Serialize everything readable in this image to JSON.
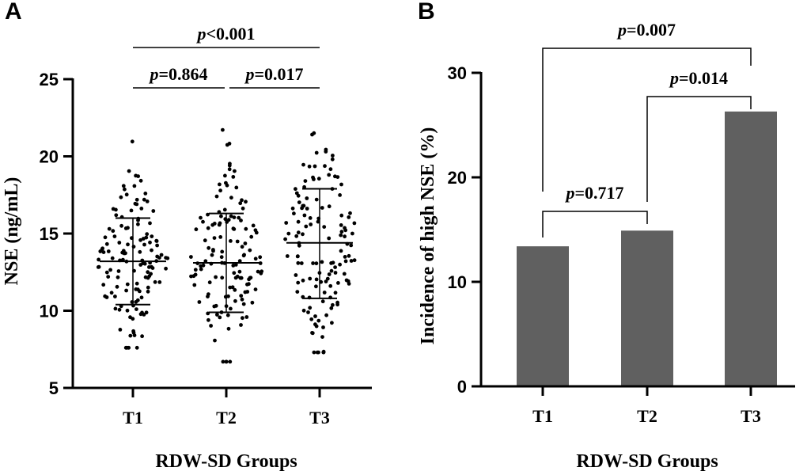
{
  "figure": {
    "panel_a_label": "A",
    "panel_b_label": "B",
    "colors": {
      "axis": "#000000",
      "bar": "#606060",
      "dot": "#000000"
    }
  },
  "chart_data": [
    {
      "type": "scatter",
      "panel": "A",
      "title": "",
      "xlabel": "RDW-SD Groups",
      "ylabel": "NSE (ng/mL)",
      "categories": [
        "T1",
        "T2",
        "T3"
      ],
      "ylim": [
        5,
        25
      ],
      "yticks": [
        5,
        10,
        15,
        20,
        25
      ],
      "grid": false,
      "summary": [
        {
          "group": "T1",
          "mean": 13.2,
          "sd_low": 10.4,
          "sd_high": 16.0
        },
        {
          "group": "T2",
          "mean": 13.1,
          "sd_low": 9.9,
          "sd_high": 16.3
        },
        {
          "group": "T3",
          "mean": 14.4,
          "sd_low": 10.8,
          "sd_high": 17.9
        }
      ],
      "comparisons": [
        {
          "from": "T1",
          "to": "T2",
          "p_label": "p",
          "p_value": "=0.864"
        },
        {
          "from": "T2",
          "to": "T3",
          "p_label": "p",
          "p_value": "=0.017"
        },
        {
          "from": "T1",
          "to": "T3",
          "p_label": "p",
          "p_value": "<0.001"
        }
      ]
    },
    {
      "type": "bar",
      "panel": "B",
      "title": "",
      "xlabel": "RDW-SD Groups",
      "ylabel": "Incidence of high NSE (%)",
      "categories": [
        "T1",
        "T2",
        "T3"
      ],
      "values": [
        13.4,
        14.9,
        26.3
      ],
      "ylim": [
        0,
        30
      ],
      "yticks": [
        0,
        10,
        20,
        30
      ],
      "grid": false,
      "comparisons": [
        {
          "from": "T1",
          "to": "T2",
          "p_label": "p",
          "p_value": "=0.717"
        },
        {
          "from": "T2",
          "to": "T3",
          "p_label": "p",
          "p_value": "=0.014"
        },
        {
          "from": "T1",
          "to": "T3",
          "p_label": "p",
          "p_value": "=0.007"
        }
      ]
    }
  ]
}
